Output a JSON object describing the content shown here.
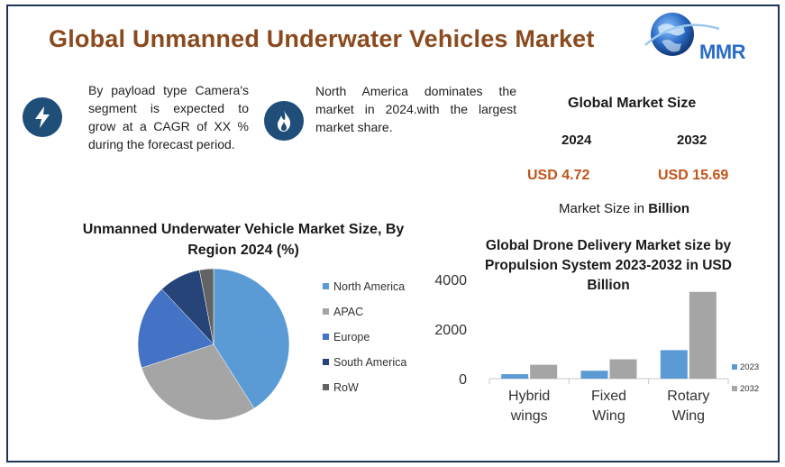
{
  "header": {
    "title": "Global Unmanned Underwater Vehicles Market",
    "logo_text": "MMR"
  },
  "features": [
    {
      "icon": "lightning-bolt-icon",
      "text": "By payload type Camera's segment is expected to grow at a CAGR of XX % during the forecast period."
    },
    {
      "icon": "flame-icon",
      "text": "North America dominates the market in 2024.with the largest market share."
    }
  ],
  "market_size": {
    "title": "Global Market Size",
    "year_start": "2024",
    "year_end": "2032",
    "value_start": "USD 4.72",
    "value_end": "USD 15.69",
    "unit_prefix": "Market Size in",
    "unit_bold": "Billion"
  },
  "colors": {
    "frame": "#1d3557",
    "title": "#8a4a1e",
    "values": "#c0541a",
    "icon_bg": "#1f4e79",
    "north_america": "#5b9bd5",
    "apac": "#a5a5a5",
    "europe": "#4472c4",
    "south_america": "#264478",
    "row": "#636363",
    "bar_2023": "#5b9bd5",
    "bar_2032": "#a5a5a5"
  },
  "chart_data": [
    {
      "type": "pie",
      "title": "Unmanned Underwater Vehicle Market Size, By Region 2024 (%)",
      "legend_position": "right",
      "slices": [
        {
          "label": "North America",
          "value": 41,
          "color": "#5b9bd5"
        },
        {
          "label": "APAC",
          "value": 29,
          "color": "#a5a5a5"
        },
        {
          "label": "Europe",
          "value": 18,
          "color": "#4472c4"
        },
        {
          "label": "South America",
          "value": 9,
          "color": "#264478"
        },
        {
          "label": "RoW",
          "value": 3,
          "color": "#636363"
        }
      ]
    },
    {
      "type": "bar",
      "title": "Global Drone Delivery Market size by Propulsion System 2023-2032 in USD Billion",
      "categories": [
        "Hybrid wings",
        "Fixed Wing",
        "Rotary Wing"
      ],
      "category_lines": [
        [
          "Hybrid",
          "wings"
        ],
        [
          "Fixed",
          "Wing"
        ],
        [
          "Rotary",
          "Wing"
        ]
      ],
      "series": [
        {
          "name": "2023",
          "values": [
            180,
            320,
            1150
          ],
          "color": "#5b9bd5"
        },
        {
          "name": "2032",
          "values": [
            560,
            780,
            3500
          ],
          "color": "#a5a5a5"
        }
      ],
      "yticks": [
        "0",
        "2000",
        "4000"
      ],
      "ylim": [
        0,
        4000
      ],
      "grid": false,
      "legend_position": "right"
    }
  ]
}
